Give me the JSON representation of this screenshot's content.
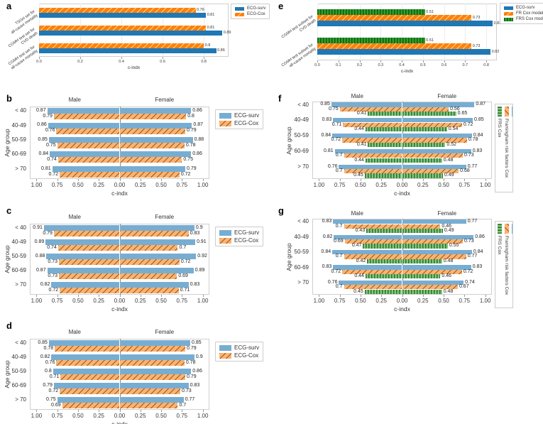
{
  "figure": {
    "background": "#ffffff",
    "accent_blue": "#1f77b4",
    "accent_orange": "#ff7f0e",
    "accent_green": "#2ca02c"
  },
  "chart_data": [
    {
      "panel": "a",
      "type": "bar",
      "orientation": "horizontal",
      "xlabel": "c-indx",
      "xticks": [
        "0.0",
        "0.2",
        "0.4",
        "0.6",
        "0.8"
      ],
      "xlim": [
        0,
        0.92
      ],
      "grid": true,
      "categories": [
        "TSGH set for\nall-cause mortality",
        "CGMH test set for\nCVD death",
        "CGMH test set for\nall-cause mortality"
      ],
      "series": [
        {
          "name": "ECG-surv",
          "color": "#1f77b4",
          "hatch": null,
          "hatch_color": null,
          "values": [
            0.81,
            0.89,
            0.86
          ]
        },
        {
          "name": "ECG-Cox",
          "color": "#ff7f0e",
          "hatch": "diag",
          "hatch_color": "rgba(255,225,140,0.9)",
          "values": [
            0.76,
            0.81,
            0.8
          ]
        }
      ],
      "bar_display_order_top_to_bottom": [
        1,
        0
      ],
      "legend": {
        "style": "box",
        "position": "outside-right-top",
        "entries": [
          {
            "label": "ECG-surv",
            "series": 0
          },
          {
            "label": "ECG-Cox",
            "series": 1
          }
        ]
      }
    },
    {
      "panel": "e",
      "type": "bar",
      "orientation": "horizontal",
      "xlabel": "c-indx",
      "xticks": [
        "0.0",
        "0.1",
        "0.2",
        "0.3",
        "0.4",
        "0.5",
        "0.6",
        "0.7",
        "0.8"
      ],
      "xlim": [
        0,
        0.85
      ],
      "grid": true,
      "categories": [
        "CGMH test subset for\nCVD death",
        "CGMH test subset for\nall-cause mortality"
      ],
      "series": [
        {
          "name": "ECG-surv",
          "color": "#1f77b4",
          "hatch": null,
          "hatch_color": null,
          "values": [
            0.83,
            0.82
          ]
        },
        {
          "name": "FR Cox model",
          "color": "#ff7f0e",
          "hatch": "diag",
          "hatch_color": "rgba(255,225,140,0.9)",
          "values": [
            0.73,
            0.73
          ]
        },
        {
          "name": "FRS Cox model",
          "color": "#2ca02c",
          "hatch": "vert",
          "hatch_color": "#0e5c16",
          "values": [
            0.51,
            0.51
          ]
        }
      ],
      "bar_display_order_top_to_bottom": [
        2,
        1,
        0
      ],
      "legend": {
        "style": "box",
        "position": "outside-right-top",
        "entries": [
          {
            "label": "ECG-surv",
            "series": 0
          },
          {
            "label": "FR Cox model",
            "series": 1
          },
          {
            "label": "FRS Cox model",
            "series": 2
          }
        ]
      }
    },
    {
      "panel": "b",
      "type": "tornado",
      "xlabel": "c-indx",
      "ylabel": "Age group",
      "column_headers": [
        "Male",
        "Female"
      ],
      "xticks": [
        "1.00",
        "0.75",
        "0.50",
        "0.25",
        "0.00",
        "0.25",
        "0.50",
        "0.75",
        "1.00"
      ],
      "side_max": 1.08,
      "categories": [
        "< 40",
        "40-49",
        "50-59",
        "60-69",
        "> 70"
      ],
      "series": [
        {
          "name": "ECG-surv",
          "color": "#78add2",
          "hatch": null,
          "hatch_color": null,
          "male": [
            0.87,
            0.86,
            0.85,
            0.84,
            0.81
          ],
          "female": [
            0.86,
            0.87,
            0.88,
            0.86,
            0.79
          ]
        },
        {
          "name": "ECG-Cox",
          "color": "#ffb26e",
          "hatch": "diag",
          "hatch_color": "rgba(105,65,15,0.75)",
          "male": [
            0.79,
            0.76,
            0.75,
            0.74,
            0.72
          ],
          "female": [
            0.8,
            0.79,
            0.78,
            0.75,
            0.72
          ]
        }
      ],
      "legend": {
        "style": "box",
        "position": "outside-right-top",
        "entries": [
          {
            "label": "ECG-surv",
            "series": 0
          },
          {
            "label": "ECG-Cox",
            "series": 1
          }
        ]
      }
    },
    {
      "panel": "f",
      "type": "tornado",
      "xlabel": "c-indx",
      "ylabel": "Age group",
      "column_headers": [
        "Male",
        "Female"
      ],
      "xticks": [
        "1.00",
        "0.75",
        "0.50",
        "0.25",
        "0.00",
        "0.25",
        "0.50",
        "0.75",
        "1.00"
      ],
      "side_max": 1.08,
      "categories": [
        "< 40",
        "40-49",
        "50-59",
        "60-69",
        "> 70"
      ],
      "series": [
        {
          "name": "ECG-surv",
          "color": "#78add2",
          "hatch": null,
          "hatch_color": null,
          "male": [
            0.85,
            0.83,
            0.84,
            0.81,
            0.76
          ],
          "female": [
            0.87,
            0.85,
            0.84,
            0.83,
            0.77
          ]
        },
        {
          "name": "Framingham risk factors Cox",
          "color": "#ffb26e",
          "hatch": "diag",
          "hatch_color": "rgba(105,65,15,0.75)",
          "male": [
            0.75,
            0.71,
            0.72,
            0.7,
            0.7
          ],
          "female": [
            0.56,
            0.72,
            0.78,
            0.73,
            0.68
          ]
        },
        {
          "name": "FRS Cox",
          "color": "#80c680",
          "hatch": "vert",
          "hatch_color": "rgba(30,100,30,0.85)",
          "male": [
            0.41,
            0.44,
            0.41,
            0.44,
            0.45
          ],
          "female": [
            0.65,
            0.54,
            0.52,
            0.48,
            0.49
          ]
        }
      ],
      "legend": {
        "style": "rotated",
        "position": "outside-right",
        "entries": [
          {
            "label": "FRS Cox",
            "series": 2
          },
          {
            "label": "Framingham risk factors Cox",
            "series": 1
          },
          {
            "label": "ECG-surv",
            "series": 0
          }
        ]
      }
    },
    {
      "panel": "c",
      "type": "tornado",
      "xlabel": "c-indx",
      "ylabel": "Age group",
      "column_headers": [
        "Male",
        "Female"
      ],
      "xticks": [
        "1.00",
        "0.75",
        "0.50",
        "0.25",
        "0.00",
        "0.25",
        "0.50",
        "0.75",
        "1.00"
      ],
      "side_max": 1.08,
      "categories": [
        "< 40",
        "40-49",
        "50-59",
        "60-69",
        "> 70"
      ],
      "series": [
        {
          "name": "ECG-surv",
          "color": "#78add2",
          "hatch": null,
          "hatch_color": null,
          "male": [
            0.91,
            0.89,
            0.88,
            0.87,
            0.82
          ],
          "female": [
            0.9,
            0.91,
            0.92,
            0.89,
            0.83
          ]
        },
        {
          "name": "ECG-Cox",
          "color": "#ffb26e",
          "hatch": "diag",
          "hatch_color": "rgba(105,65,15,0.75)",
          "male": [
            0.79,
            0.74,
            0.73,
            0.73,
            0.72
          ],
          "female": [
            0.83,
            0.7,
            0.72,
            0.69,
            0.71
          ]
        }
      ],
      "legend": {
        "style": "box",
        "position": "outside-right-top",
        "entries": [
          {
            "label": "ECG-surv",
            "series": 0
          },
          {
            "label": "ECG-Cox",
            "series": 1
          }
        ]
      }
    },
    {
      "panel": "g",
      "type": "tornado",
      "xlabel": "c-indx",
      "ylabel": "Age group",
      "column_headers": [
        "Male",
        "Female"
      ],
      "xticks": [
        "1.00",
        "0.75",
        "0.50",
        "0.25",
        "0.00",
        "0.25",
        "0.50",
        "0.75",
        "1.00"
      ],
      "side_max": 1.08,
      "categories": [
        "< 40",
        "40-49",
        "50-59",
        "60-69",
        "> 70"
      ],
      "series": [
        {
          "name": "ECG-surv",
          "color": "#78add2",
          "hatch": null,
          "hatch_color": null,
          "male": [
            0.83,
            0.82,
            0.84,
            0.83,
            0.76
          ],
          "female": [
            0.77,
            0.86,
            0.84,
            0.83,
            0.74
          ]
        },
        {
          "name": "Framingham risk factors Cox",
          "color": "#ffb26e",
          "hatch": "diag",
          "hatch_color": "rgba(105,65,15,0.75)",
          "male": [
            0.7,
            0.69,
            0.7,
            0.72,
            0.7
          ],
          "female": [
            0.46,
            0.73,
            0.77,
            0.72,
            0.67
          ]
        },
        {
          "name": "FRS Cox",
          "color": "#80c680",
          "hatch": "vert",
          "hatch_color": "rgba(30,100,30,0.85)",
          "male": [
            0.43,
            0.47,
            0.42,
            0.44,
            0.45
          ],
          "female": [
            0.49,
            0.55,
            0.48,
            0.46,
            0.48
          ]
        }
      ],
      "legend": {
        "style": "rotated",
        "position": "outside-right",
        "entries": [
          {
            "label": "FRS Cox",
            "series": 2
          },
          {
            "label": "Framingham risk factors Cox",
            "series": 1
          },
          {
            "label": "ECG-surv",
            "series": 0
          }
        ]
      }
    },
    {
      "panel": "d",
      "type": "tornado",
      "xlabel": "c-indx",
      "ylabel": "Age group",
      "column_headers": [
        "Male",
        "Female"
      ],
      "xticks": [
        "1.00",
        "0.75",
        "0.50",
        "0.25",
        "0.00",
        "0.25",
        "0.50",
        "0.75",
        "1.00"
      ],
      "side_max": 1.08,
      "categories": [
        "< 40",
        "40-49",
        "50-59",
        "60-69",
        "> 70"
      ],
      "series": [
        {
          "name": "ECG-surv",
          "color": "#78add2",
          "hatch": null,
          "hatch_color": null,
          "male": [
            0.85,
            0.82,
            0.8,
            0.79,
            0.75
          ],
          "female": [
            0.85,
            0.9,
            0.86,
            0.83,
            0.77
          ]
        },
        {
          "name": "ECG-Cox",
          "color": "#ffb26e",
          "hatch": "diag",
          "hatch_color": "rgba(105,65,15,0.75)",
          "male": [
            0.78,
            0.76,
            0.71,
            0.72,
            0.69
          ],
          "female": [
            0.79,
            0.78,
            0.79,
            0.73,
            0.7
          ]
        }
      ],
      "legend": {
        "style": "box",
        "position": "outside-right-top",
        "entries": [
          {
            "label": "ECG-surv",
            "series": 0
          },
          {
            "label": "ECG-Cox",
            "series": 1
          }
        ]
      }
    }
  ]
}
